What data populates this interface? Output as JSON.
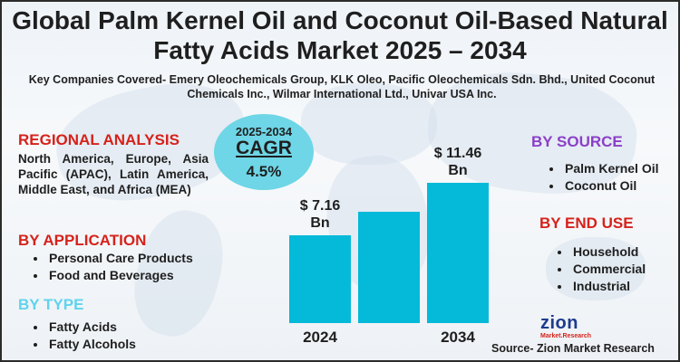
{
  "title": "Global Palm Kernel Oil and Coconut Oil-Based Natural Fatty Acids Market 2025 – 2034",
  "companies": "Key Companies Covered- Emery Oleochemicals Group, KLK Oleo, Pacific Oleochemicals Sdn. Bhd., United Coconut Chemicals Inc., Wilmar International Ltd., Univar USA Inc.",
  "cagr": {
    "years": "2025-2034",
    "label": "CAGR",
    "value": "4.5%"
  },
  "regional": {
    "heading": "REGIONAL ANALYSIS",
    "text": "North America, Europe, Asia Pacific (APAC), Latin America, Middle East, and Africa (MEA)"
  },
  "application": {
    "heading": "BY APPLICATION",
    "items": [
      "Personal Care Products",
      "Food and Beverages"
    ]
  },
  "type": {
    "heading": "BY TYPE",
    "items": [
      "Fatty Acids",
      "Fatty Alcohols"
    ]
  },
  "source_seg": {
    "heading": "BY SOURCE",
    "items": [
      "Palm Kernel Oil",
      "Coconut Oil"
    ]
  },
  "end_use": {
    "heading": "BY END USE",
    "items": [
      "Household",
      "Commercial",
      "Industrial"
    ]
  },
  "logo": {
    "name": "zion",
    "tagline": "Market.Research"
  },
  "source_note": "Source- Zion Market Research",
  "colors": {
    "bar": "#05b9d9",
    "red": "#d6221b",
    "purple": "#8b3fc8",
    "cyan": "#5fd3ee",
    "cagr_bubble": "#6ed6e6"
  },
  "chart_data": {
    "type": "bar",
    "categories": [
      "2024",
      "",
      "2034"
    ],
    "values": [
      7.16,
      9.06,
      11.46
    ],
    "data_labels": [
      "$ 7.16 Bn",
      "",
      "$ 11.46 Bn"
    ],
    "title": "",
    "xlabel": "",
    "ylabel": "",
    "ylim": [
      0,
      12
    ],
    "grid": false,
    "legend": "none"
  }
}
